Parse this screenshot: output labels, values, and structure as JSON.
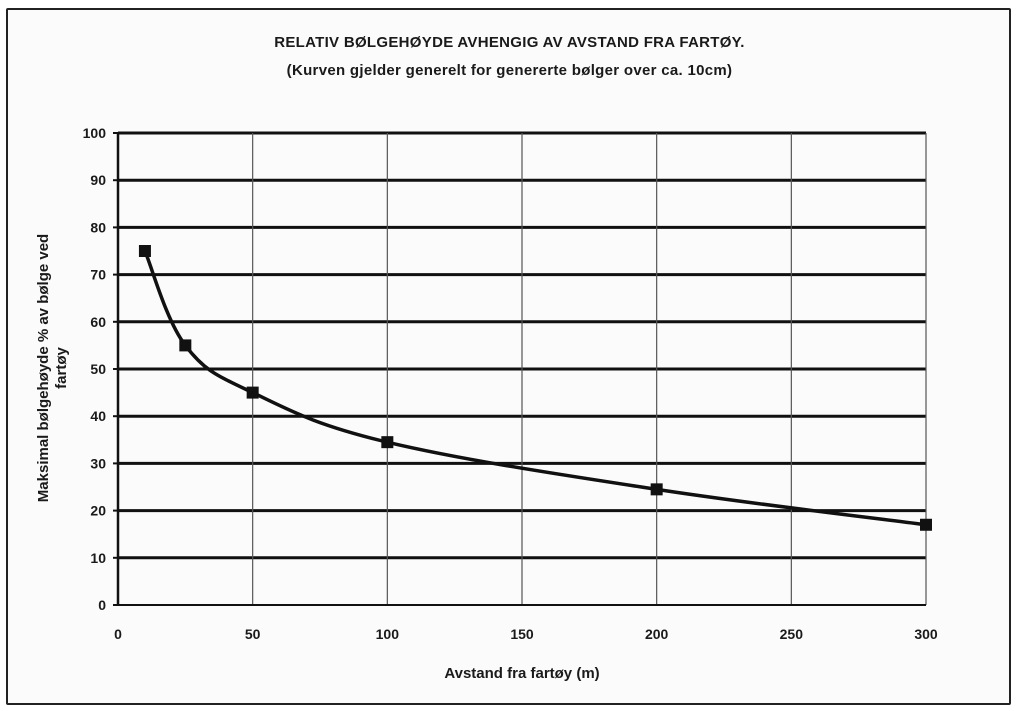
{
  "chart_data": {
    "type": "line",
    "title": "RELATIV BØLGEHØYDE AVHENGIG AV AVSTAND FRA FARTØY.",
    "subtitle": "(Kurven gjelder generelt for genererte bølger over ca. 10cm)",
    "xlabel": "Avstand fra fartøy (m)",
    "ylabel_lines": [
      "Maksimal bølgehøyde % av bølge ved",
      "fartøy"
    ],
    "xlim": [
      0,
      300
    ],
    "ylim": [
      0,
      100
    ],
    "x_ticks": [
      "0",
      "50",
      "100",
      "150",
      "200",
      "250",
      "300"
    ],
    "y_ticks": [
      "0",
      "10",
      "20",
      "30",
      "40",
      "50",
      "60",
      "70",
      "80",
      "90",
      "100"
    ],
    "grid": true,
    "series": [
      {
        "color": "#111111",
        "marker": "square",
        "points": [
          {
            "x": 10,
            "y": 75
          },
          {
            "x": 25,
            "y": 55
          },
          {
            "x": 50,
            "y": 45
          },
          {
            "x": 100,
            "y": 34.5
          },
          {
            "x": 200,
            "y": 24.5
          },
          {
            "x": 300,
            "y": 17
          }
        ]
      }
    ]
  }
}
